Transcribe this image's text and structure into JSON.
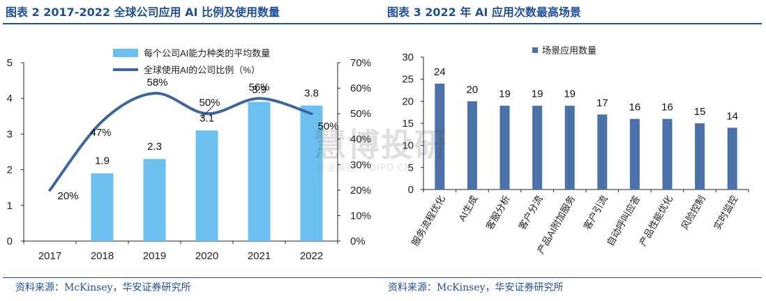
{
  "left": {
    "title": "图表 2 2017-2022 全球公司应用 AI 比例及使用数量",
    "source": "资料来源：McKinsey，华安证券研究所"
  },
  "right": {
    "title": "图表 3 2022 年 AI 应用次数最高场景",
    "source": "资料来源：McKinsey，华安证券研究所"
  },
  "watermark": {
    "main": "慧博投研",
    "sub": "行业报告 IPOIPO.CN"
  },
  "colors": {
    "bar_light": "#6cc0f0",
    "line": "#3f65a0",
    "bar_dark": "#4a72a8",
    "title": "#1f4e9a"
  },
  "chart_data": [
    {
      "type": "bar+line",
      "categories": [
        "2017",
        "2018",
        "2019",
        "2020",
        "2021",
        "2022"
      ],
      "series": [
        {
          "name": "每个公司AI能力种类的平均数量",
          "type": "bar",
          "axis": "left",
          "values": [
            null,
            1.9,
            2.3,
            3.1,
            3.9,
            3.8
          ],
          "labels": [
            "",
            "1.9",
            "2.3",
            "3.1",
            "3.9",
            "3.8"
          ]
        },
        {
          "name": "全球使用AI的公司比例（%）",
          "type": "line",
          "axis": "right",
          "values": [
            20,
            47,
            58,
            50,
            56,
            50
          ],
          "labels": [
            "20%",
            "47%",
            "58%",
            "50%",
            "56%",
            "50%"
          ]
        }
      ],
      "y_left": {
        "range": [
          0,
          5
        ],
        "ticks": [
          "0",
          "1",
          "2",
          "3",
          "4",
          "5"
        ]
      },
      "y_right": {
        "range": [
          0,
          70
        ],
        "ticks": [
          "0%",
          "10%",
          "20%",
          "30%",
          "40%",
          "50%",
          "60%",
          "70%"
        ]
      },
      "legend_position": "top-center",
      "grid": false
    },
    {
      "type": "bar",
      "categories": [
        "服务流程优化",
        "AI生成",
        "客服分析",
        "客户分流",
        "产品AI附加服务",
        "客户引流",
        "自动呼叫应答",
        "产品性能优化",
        "风险控制",
        "实时监控"
      ],
      "series": [
        {
          "name": "场景应用数量",
          "values": [
            24,
            20,
            19,
            19,
            19,
            17,
            16,
            16,
            15,
            14
          ],
          "labels": [
            "24",
            "20",
            "19",
            "19",
            "19",
            "17",
            "16",
            "16",
            "15",
            "14"
          ]
        }
      ],
      "y": {
        "range": [
          0,
          30
        ],
        "ticks": [
          "0",
          "5",
          "10",
          "15",
          "20",
          "25",
          "30"
        ]
      },
      "legend_position": "top-left",
      "grid": false
    }
  ]
}
